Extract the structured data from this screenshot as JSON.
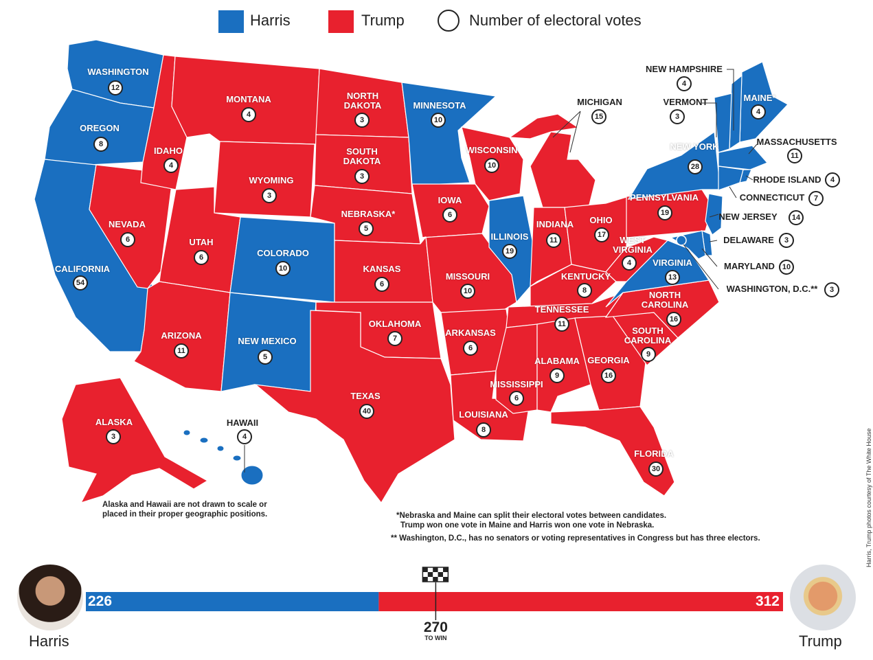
{
  "legend": [
    {
      "label": "Harris",
      "color": "#1a6fc0"
    },
    {
      "label": "Trump",
      "color": "#e8212e"
    },
    {
      "label": "Number of electoral votes"
    }
  ],
  "states": [
    {
      "name": "WASHINGTON",
      "votes": "12",
      "party": "Harris"
    },
    {
      "name": "OREGON",
      "votes": "8",
      "party": "Harris"
    },
    {
      "name": "CALIFORNIA",
      "votes": "54",
      "party": "Harris"
    },
    {
      "name": "NEVADA",
      "votes": "6",
      "party": "Trump"
    },
    {
      "name": "IDAHO",
      "votes": "4",
      "party": "Trump"
    },
    {
      "name": "MONTANA",
      "votes": "4",
      "party": "Trump"
    },
    {
      "name": "WYOMING",
      "votes": "3",
      "party": "Trump"
    },
    {
      "name": "UTAH",
      "votes": "6",
      "party": "Trump"
    },
    {
      "name": "ARIZONA",
      "votes": "11",
      "party": "Trump"
    },
    {
      "name": "COLORADO",
      "votes": "10",
      "party": "Harris"
    },
    {
      "name": "NEW MEXICO",
      "votes": "5",
      "party": "Harris"
    },
    {
      "name": "NORTH DAKOTA",
      "votes": "3",
      "party": "Trump"
    },
    {
      "name": "SOUTH DAKOTA",
      "votes": "3",
      "party": "Trump"
    },
    {
      "name": "NEBRASKA*",
      "votes": "5",
      "party": "Trump"
    },
    {
      "name": "KANSAS",
      "votes": "6",
      "party": "Trump"
    },
    {
      "name": "OKLAHOMA",
      "votes": "7",
      "party": "Trump"
    },
    {
      "name": "TEXAS",
      "votes": "40",
      "party": "Trump"
    },
    {
      "name": "MINNESOTA",
      "votes": "10",
      "party": "Harris"
    },
    {
      "name": "IOWA",
      "votes": "6",
      "party": "Trump"
    },
    {
      "name": "MISSOURI",
      "votes": "10",
      "party": "Trump"
    },
    {
      "name": "ARKANSAS",
      "votes": "6",
      "party": "Trump"
    },
    {
      "name": "LOUISIANA",
      "votes": "8",
      "party": "Trump"
    },
    {
      "name": "WISCONSIN",
      "votes": "10",
      "party": "Trump"
    },
    {
      "name": "ILLINOIS",
      "votes": "19",
      "party": "Harris"
    },
    {
      "name": "MICHIGAN",
      "votes": "15",
      "party": "Trump"
    },
    {
      "name": "INDIANA",
      "votes": "11",
      "party": "Trump"
    },
    {
      "name": "OHIO",
      "votes": "17",
      "party": "Trump"
    },
    {
      "name": "KENTUCKY",
      "votes": "8",
      "party": "Trump"
    },
    {
      "name": "TENNESSEE",
      "votes": "11",
      "party": "Trump"
    },
    {
      "name": "MISSISSIPPI",
      "votes": "6",
      "party": "Trump"
    },
    {
      "name": "ALABAMA",
      "votes": "9",
      "party": "Trump"
    },
    {
      "name": "GEORGIA",
      "votes": "16",
      "party": "Trump"
    },
    {
      "name": "FLORIDA",
      "votes": "30",
      "party": "Trump"
    },
    {
      "name": "SOUTH CAROLINA",
      "votes": "9",
      "party": "Trump"
    },
    {
      "name": "NORTH CAROLINA",
      "votes": "16",
      "party": "Trump"
    },
    {
      "name": "VIRGINIA",
      "votes": "13",
      "party": "Harris"
    },
    {
      "name": "WEST VIRGINIA",
      "votes": "4",
      "party": "Trump"
    },
    {
      "name": "PENNSYLVANIA",
      "votes": "19",
      "party": "Trump"
    },
    {
      "name": "NEW YORK",
      "votes": "28",
      "party": "Harris"
    },
    {
      "name": "MAINE*",
      "votes": "4",
      "party": "Harris"
    },
    {
      "name": "NEW HAMPSHIRE",
      "votes": "4",
      "party": "Harris"
    },
    {
      "name": "VERMONT",
      "votes": "3",
      "party": "Harris"
    },
    {
      "name": "MASSACHUSETTS",
      "votes": "11",
      "party": "Harris"
    },
    {
      "name": "RHODE ISLAND",
      "votes": "4",
      "party": "Harris"
    },
    {
      "name": "CONNECTICUT",
      "votes": "7",
      "party": "Harris"
    },
    {
      "name": "NEW JERSEY",
      "votes": "14",
      "party": "Harris"
    },
    {
      "name": "DELAWARE",
      "votes": "3",
      "party": "Harris"
    },
    {
      "name": "MARYLAND",
      "votes": "10",
      "party": "Harris"
    },
    {
      "name": "WASHINGTON, D.C.**",
      "votes": "3",
      "party": "Harris"
    },
    {
      "name": "ALASKA",
      "votes": "3",
      "party": "Trump"
    },
    {
      "name": "HAWAII",
      "votes": "4",
      "party": "Harris"
    }
  ],
  "notes": {
    "alaska_hawaii": "Alaska and Hawaii are not drawn to scale or placed in their proper geographic positions.",
    "split": [
      "*Nebraska and Maine can split their electoral votes between candidates.",
      "Trump won one vote in Maine and Harris won one vote in Nebraska."
    ],
    "dc": "** Washington, D.C., has no senators or voting representatives in Congress but has three electors."
  },
  "tally": {
    "harris": {
      "name": "Harris",
      "votes": 226
    },
    "trump": {
      "name": "Trump",
      "votes": 312
    },
    "to_win": {
      "votes": 270,
      "label": "TO WIN"
    }
  },
  "credit": "Harris, Trump photos courtesy of The White House"
}
